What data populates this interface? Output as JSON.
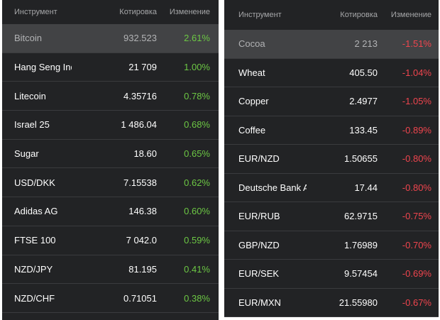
{
  "colors": {
    "background": "#222325",
    "selected_row": "#424345",
    "positive": "#6cc744",
    "negative": "#f0454e",
    "header_text": "#a6a7a9"
  },
  "left_table": {
    "headers": {
      "instrument": "Инструмент",
      "price": "Котировка",
      "change": "Изменение"
    },
    "rows": [
      {
        "name": "Bitcoin",
        "price": "932.523",
        "change": "2.61%",
        "selected": true
      },
      {
        "name": "Hang Seng Index",
        "price": "21 709",
        "change": "1.00%"
      },
      {
        "name": "Litecoin",
        "price": "4.35716",
        "change": "0.78%"
      },
      {
        "name": "Israel 25",
        "price": "1 486.04",
        "change": "0.68%"
      },
      {
        "name": "Sugar",
        "price": "18.60",
        "change": "0.65%"
      },
      {
        "name": "USD/DKK",
        "price": "7.15538",
        "change": "0.62%"
      },
      {
        "name": "Adidas AG",
        "price": "146.38",
        "change": "0.60%"
      },
      {
        "name": "FTSE 100",
        "price": "7 042.0",
        "change": "0.59%"
      },
      {
        "name": "NZD/JPY",
        "price": "81.195",
        "change": "0.41%"
      },
      {
        "name": "NZD/CHF",
        "price": "0.71051",
        "change": "0.38%"
      }
    ]
  },
  "right_table": {
    "headers": {
      "instrument": "Инструмент",
      "price": "Котировка",
      "change": "Изменение"
    },
    "rows": [
      {
        "name": "Cocoa",
        "price": "2 213",
        "change": "-1.51%",
        "selected": true
      },
      {
        "name": "Wheat",
        "price": "405.50",
        "change": "-1.04%"
      },
      {
        "name": "Copper",
        "price": "2.4977",
        "change": "-1.05%"
      },
      {
        "name": "Coffee",
        "price": "133.45",
        "change": "-0.89%"
      },
      {
        "name": "EUR/NZD",
        "price": "1.50655",
        "change": "-0.80%"
      },
      {
        "name": "Deutsche Bank AG",
        "price": "17.44",
        "change": "-0.80%"
      },
      {
        "name": "EUR/RUB",
        "price": "62.9715",
        "change": "-0.75%"
      },
      {
        "name": "GBP/NZD",
        "price": "1.76989",
        "change": "-0.70%"
      },
      {
        "name": "EUR/SEK",
        "price": "9.57454",
        "change": "-0.69%"
      },
      {
        "name": "EUR/MXN",
        "price": "21.55980",
        "change": "-0.67%"
      }
    ]
  }
}
